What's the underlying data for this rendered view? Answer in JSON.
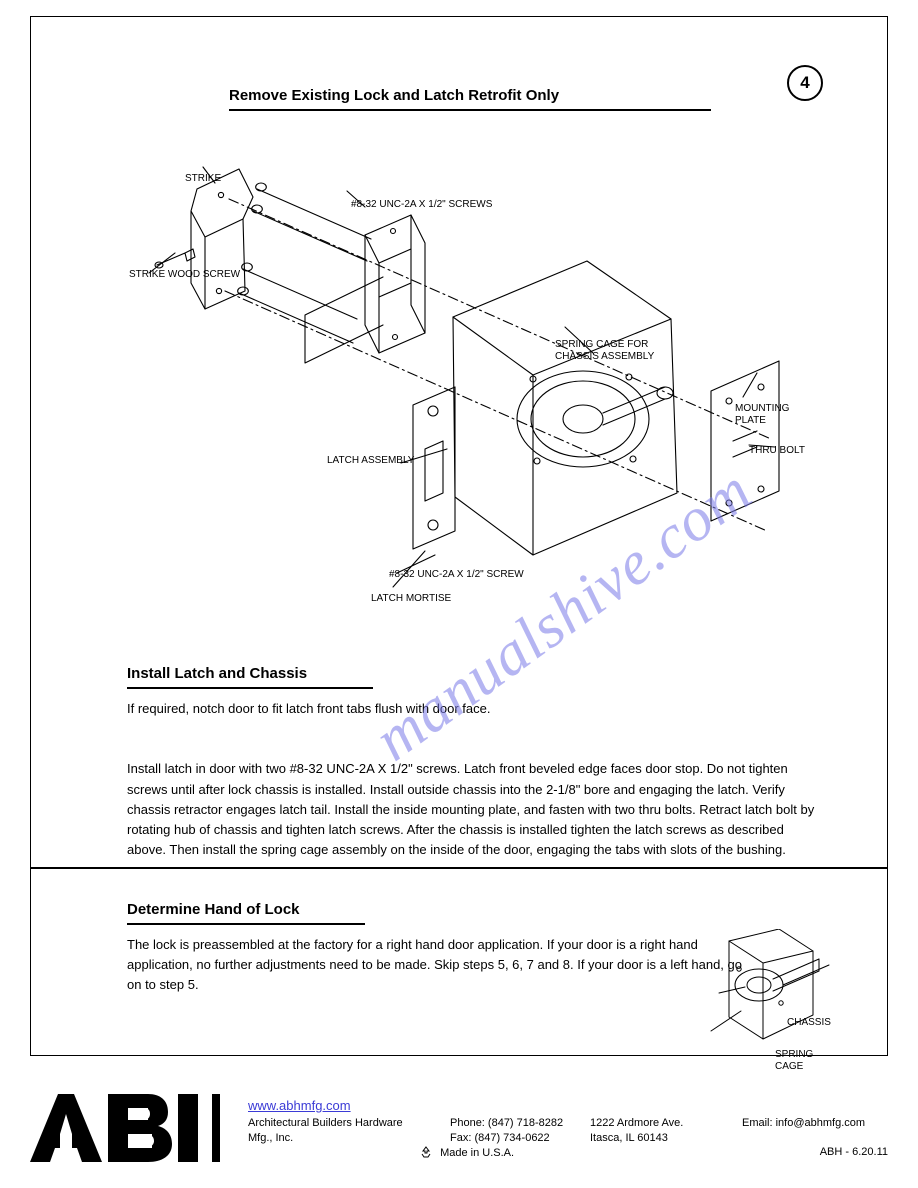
{
  "step": {
    "number": "4",
    "title": "Remove Existing Lock and Latch Retrofit Only"
  },
  "diagram_main": {
    "callouts": {
      "strike": "STRIKE",
      "screws_a": "#8-32 UNC-2A X 1/2\" SCREWS",
      "strike_wood_screw": "STRIKE WOOD SCREW",
      "spring": "SPRING CAGE FOR\nCHASSIS ASSEMBLY",
      "mount_plate": "MOUNTING\nPLATE",
      "thru_bolt": "THRU BOLT",
      "screw_a": "#8-32 UNC-2A X 1/2\" SCREW",
      "latch_mortise": "LATCH MORTISE",
      "latch_assy": "LATCH ASSEMBLY"
    },
    "line_color": "#000000",
    "stroke_width": 1.1
  },
  "section_install_latch": {
    "title": "Install Latch and Chassis",
    "body": "If required, notch door to fit latch front tabs flush with door face.\n\nInstall latch in door with two #8-32 UNC-2A X 1/2\" screws. Latch front beveled edge faces door stop. Do not tighten screws until after lock chassis is installed. Install outside chassis into the 2-1/8\" bore and engaging the latch. Verify chassis retractor engages latch tail. Install the inside mounting plate, and fasten with two thru bolts. Retract latch bolt by rotating hub of chassis and tighten latch screws. After the chassis is installed tighten the latch screws as described above. Then install the spring cage assembly on the inside of the door, engaging the tabs with slots of the bushing."
  },
  "section_hand_lock": {
    "title": "Determine Hand of Lock",
    "body": "The lock is preassembled at the factory for a right hand door application. If your door is a right hand application, no further adjustments need to be made. Skip steps 5, 6, 7 and 8. If your door is a left hand, go on to step 5."
  },
  "diagram_small": {
    "label_chassis": "CHASSIS",
    "label_springcage": "SPRING\nCAGE"
  },
  "footer": {
    "link": "www.abhmfg.com",
    "company": "Architectural Builders Hardware\nMfg., Inc.",
    "phone": "Phone:  (847) 718-8282\nFax:      (847) 734-0622",
    "address": "1222 Ardmore Ave.\nItasca, IL 60143",
    "email": "Email:  info@abhmfg.com",
    "origin": "Made in U.S.A.",
    "docno": "ABH - 6.20.11"
  },
  "watermark": "manualshive.com"
}
